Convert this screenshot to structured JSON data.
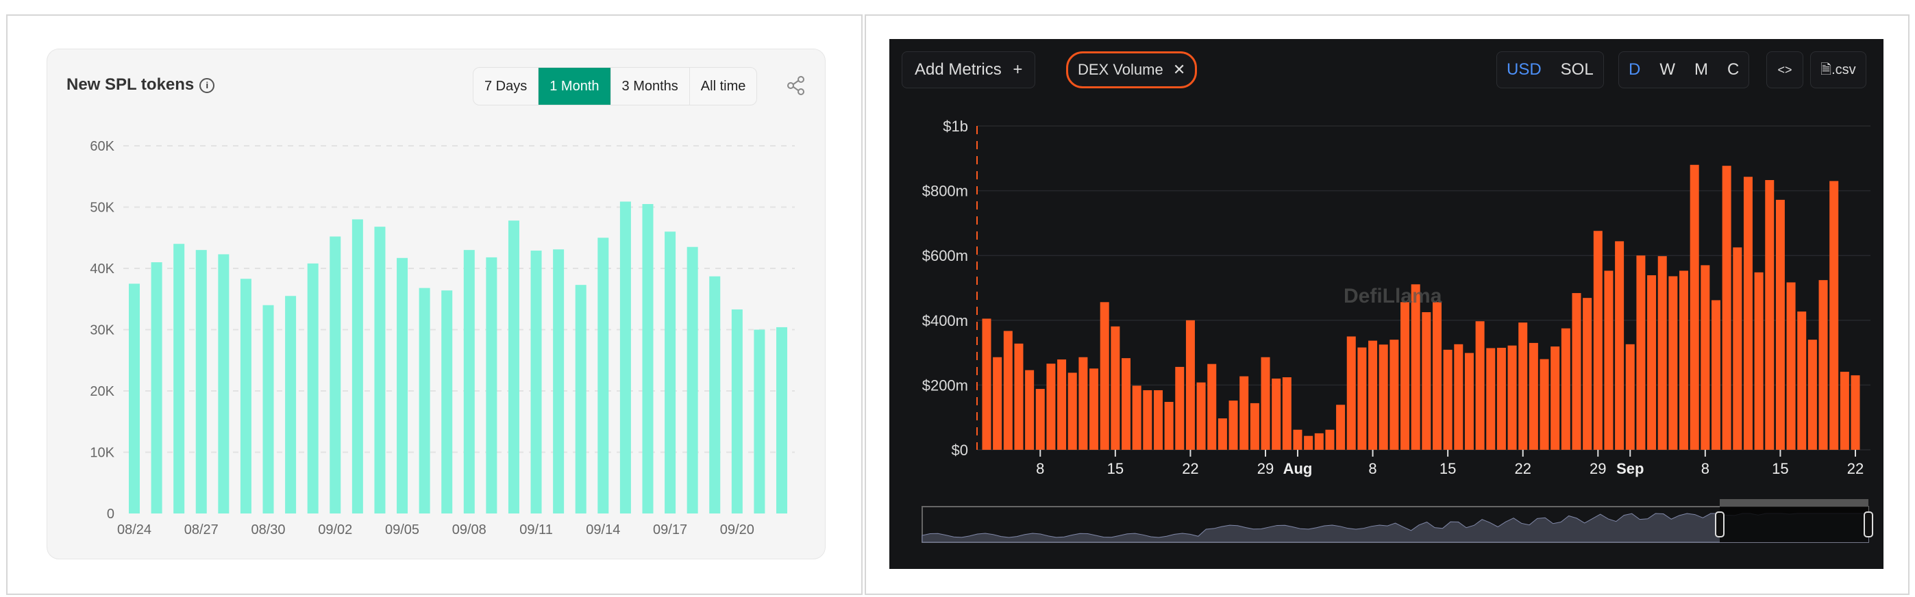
{
  "left_panel": {
    "title": "New SPL tokens",
    "info_icon": "info-circle-icon",
    "ranges": [
      "7 Days",
      "1 Month",
      "3 Months",
      "All time"
    ],
    "selected_range": "1 Month",
    "share_icon": "share-icon",
    "accent": "#009a78",
    "bar_color": "#80f2da"
  },
  "right_panel": {
    "add_metrics": "Add Metrics",
    "add_icon": "plus-icon",
    "metric_chip": "DEX Volume",
    "chip_close_icon": "close-icon",
    "currency": [
      "USD",
      "SOL"
    ],
    "selected_currency": "USD",
    "periods": [
      "D",
      "W",
      "M",
      "C"
    ],
    "selected_period": "D",
    "embed_label": "<>",
    "csv_label": ".csv",
    "watermark": "DefiLlama",
    "bar_color": "#ff5a1f",
    "selection_color": "#4c8ff7"
  },
  "chart_data": [
    {
      "type": "bar",
      "title": "New SPL tokens",
      "categories": [
        "08/24",
        "08/25",
        "08/26",
        "08/27",
        "08/28",
        "08/29",
        "08/30",
        "08/31",
        "09/01",
        "09/02",
        "09/03",
        "09/04",
        "09/05",
        "09/06",
        "09/07",
        "09/08",
        "09/09",
        "09/10",
        "09/11",
        "09/12",
        "09/13",
        "09/14",
        "09/15",
        "09/16",
        "09/17",
        "09/18",
        "09/19",
        "09/20",
        "09/21",
        "09/22"
      ],
      "x_tick_labels": [
        "08/24",
        "08/27",
        "08/30",
        "09/02",
        "09/05",
        "09/08",
        "09/11",
        "09/14",
        "09/17",
        "09/20"
      ],
      "values": [
        37500,
        41000,
        44000,
        43000,
        42300,
        38300,
        34000,
        35500,
        40800,
        45200,
        48000,
        46800,
        41700,
        36800,
        36400,
        43000,
        41800,
        47800,
        42900,
        43100,
        37300,
        45000,
        50900,
        50500,
        46000,
        43500,
        38700,
        33300,
        30000,
        30400
      ],
      "ylim": [
        0,
        60000
      ],
      "y_tick_labels": [
        "0",
        "10K",
        "20K",
        "30K",
        "40K",
        "50K",
        "60K"
      ],
      "grid": true
    },
    {
      "type": "bar",
      "series_label": "DEX Volume",
      "x_start": "Jul 3",
      "x_end": "Sep 22",
      "x_tick_labels": [
        "8",
        "15",
        "22",
        "29",
        "Aug",
        "8",
        "15",
        "22",
        "29",
        "Sep",
        "8",
        "15",
        "22"
      ],
      "values_musd": [
        405,
        286,
        367,
        328,
        246,
        188,
        266,
        279,
        238,
        286,
        251,
        456,
        381,
        283,
        198,
        184,
        184,
        148,
        256,
        400,
        208,
        265,
        97,
        152,
        227,
        144,
        286,
        220,
        224,
        62,
        43,
        51,
        62,
        139,
        350,
        316,
        337,
        325,
        340,
        456,
        511,
        425,
        456,
        309,
        326,
        299,
        397,
        314,
        315,
        322,
        393,
        330,
        280,
        319,
        375,
        484,
        469,
        676,
        553,
        644,
        326,
        600,
        539,
        598,
        536,
        553,
        880,
        570,
        462,
        877,
        625,
        843,
        548,
        833,
        772,
        517,
        427,
        340,
        524,
        830,
        241,
        230
      ],
      "ylim_musd": [
        0,
        1000
      ],
      "y_tick_labels": [
        "$0",
        "$200m",
        "$400m",
        "$600m",
        "$800m",
        "$1b"
      ],
      "grid": true
    }
  ]
}
